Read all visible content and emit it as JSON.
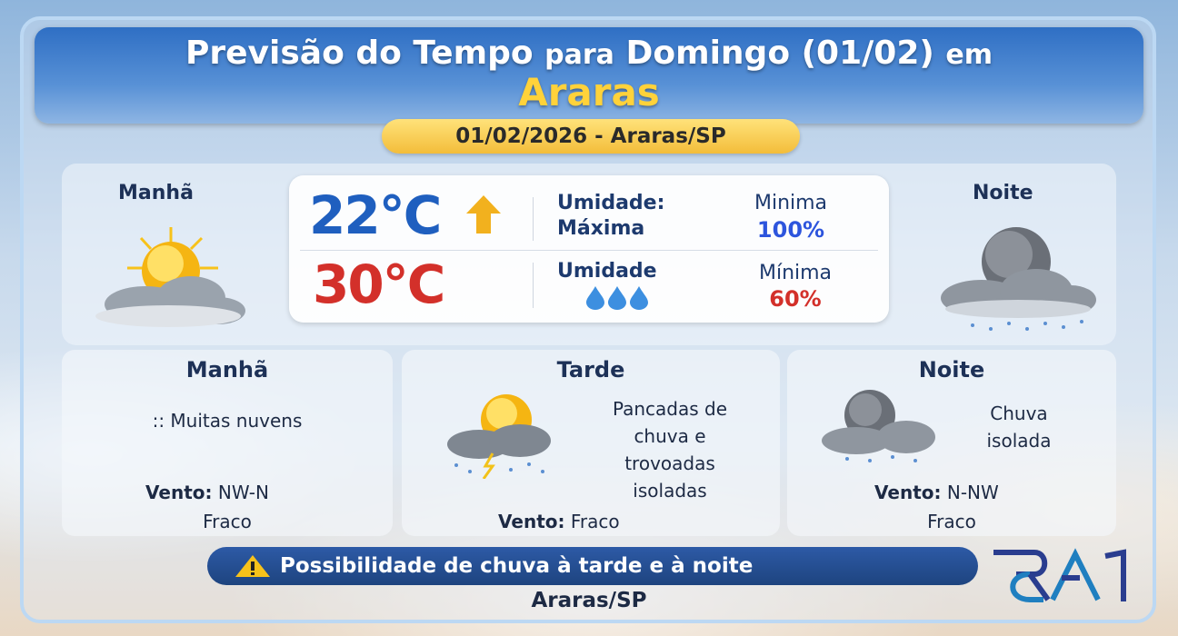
{
  "header": {
    "title_prefix": "Previsão do Tempo",
    "title_mid": "para",
    "title_suffix": "Domingo (01/02)",
    "title_end": "em",
    "city": "Araras"
  },
  "date_pill": "01/02/2026 - Araras/SP",
  "summary": {
    "morning_label": "Manhã",
    "night_label": "Noite",
    "temp_min": "22°C",
    "temp_max": "30°C",
    "humidity_max_label1": "Umidade:",
    "humidity_max_label2": "Máxima",
    "humidity_min_label": "Umidade",
    "max_min_label": "Minima",
    "max_value": "100%",
    "min_min_label": "Mínima",
    "min_value": "60%",
    "colors": {
      "min_temp": "#1f5fbf",
      "max_temp": "#d3302a",
      "arrow": "#f2b11e"
    }
  },
  "periods": [
    {
      "title": "Manhã",
      "condition": ":: Muitas nuvens",
      "wind_label": "Vento:",
      "wind_dir": "NW-N",
      "wind_strength": "Fraco",
      "icon": "sun-cloud-icon"
    },
    {
      "title": "Tarde",
      "condition_lines": [
        "Pancadas de",
        "chuva e",
        "trovoadas",
        "isoladas"
      ],
      "wind_label": "Vento:",
      "wind_strength": "Fraco",
      "icon": "sun-storm-icon"
    },
    {
      "title": "Noite",
      "condition_lines": [
        "Chuva",
        "isolada"
      ],
      "wind_label": "Vento:",
      "wind_dir": "N-NW",
      "wind_strength": "Fraco",
      "icon": "moon-rain-icon"
    }
  ],
  "alert": "Possibilidade de chuva à tarde e à noite",
  "footer_city": "Araras/SP",
  "logo": "RA1"
}
